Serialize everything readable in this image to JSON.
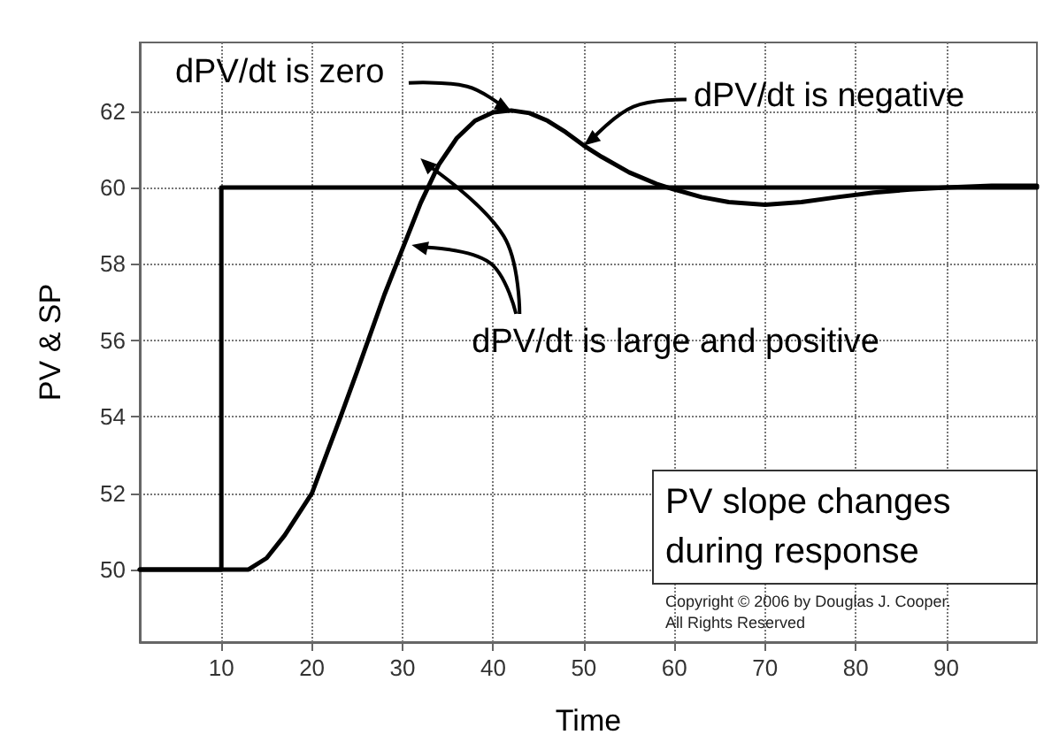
{
  "chart_data": {
    "type": "line",
    "xlabel": "Time",
    "ylabel": "PV & SP",
    "xlim": [
      1,
      100
    ],
    "xticks": [
      10,
      20,
      30,
      40,
      50,
      60,
      70,
      80,
      90
    ],
    "ylim": [
      48.1,
      63.8
    ],
    "yticks": [
      50,
      52,
      54,
      56,
      58,
      60,
      62
    ],
    "grid": true,
    "line_style": "solid",
    "series": [
      {
        "type": "step",
        "color": "#000000",
        "x": [
          1,
          10,
          100
        ],
        "values": [
          50,
          60,
          60
        ]
      },
      {
        "color": "#000000",
        "x": [
          1,
          13,
          15,
          17,
          20,
          23,
          25,
          28,
          30,
          32,
          34,
          36,
          38,
          40,
          42,
          44,
          46,
          48,
          50,
          52,
          55,
          58,
          60,
          63,
          66,
          70,
          74,
          78,
          82,
          86,
          90,
          95,
          100
        ],
        "values": [
          50,
          50,
          50.3,
          50.9,
          52,
          53.9,
          55.2,
          57.2,
          58.4,
          59.6,
          60.6,
          61.3,
          61.75,
          61.97,
          62.02,
          61.95,
          61.75,
          61.45,
          61.1,
          60.8,
          60.4,
          60.1,
          59.95,
          59.75,
          59.62,
          59.55,
          59.62,
          59.75,
          59.87,
          59.95,
          60,
          60.05,
          60.05
        ]
      }
    ],
    "annotations": [
      {
        "text": "dPV/dt is zero",
        "x": 42,
        "y": 62
      },
      {
        "text": "dPV/dt is negative",
        "x": 50,
        "y": 61.1
      },
      {
        "text": "dPV/dt is large and positive",
        "x": 31,
        "y": 58.5
      },
      "PV slope changes during response",
      "Copyright © 2006 by Douglas J. Cooper. All Rights Reserved"
    ]
  }
}
